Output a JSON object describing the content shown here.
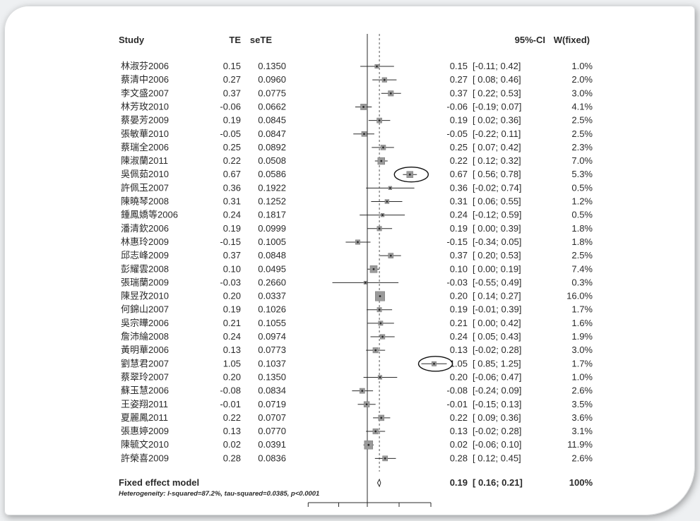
{
  "chart_data": {
    "type": "forest",
    "headers": {
      "study": "Study",
      "te": "TE",
      "sete": "seTE",
      "ci": "95%-CI",
      "weight": "W(fixed)"
    },
    "studies": [
      {
        "study": "林淑芬2006",
        "te": "0.15",
        "sete": "0.1350",
        "est": 0.15,
        "lo": -0.11,
        "hi": 0.42,
        "ci": "[-0.11; 0.42]",
        "weight": "1.0%",
        "w": 1.0
      },
      {
        "study": "蔡清中2006",
        "te": "0.27",
        "sete": "0.0960",
        "est": 0.27,
        "lo": 0.08,
        "hi": 0.46,
        "ci": "[ 0.08; 0.46]",
        "weight": "2.0%",
        "w": 2.0
      },
      {
        "study": "李文盛2007",
        "te": "0.37",
        "sete": "0.0775",
        "est": 0.37,
        "lo": 0.22,
        "hi": 0.53,
        "ci": "[ 0.22; 0.53]",
        "weight": "3.0%",
        "w": 3.0
      },
      {
        "study": "林芳玫2010",
        "te": "-0.06",
        "sete": "0.0662",
        "est": -0.06,
        "lo": -0.19,
        "hi": 0.07,
        "ci": "[-0.19; 0.07]",
        "weight": "4.1%",
        "w": 4.1
      },
      {
        "study": "蔡晏芳2009",
        "te": "0.19",
        "sete": "0.0845",
        "est": 0.19,
        "lo": 0.02,
        "hi": 0.36,
        "ci": "[ 0.02; 0.36]",
        "weight": "2.5%",
        "w": 2.5
      },
      {
        "study": "張敏華2010",
        "te": "-0.05",
        "sete": "0.0847",
        "est": -0.05,
        "lo": -0.22,
        "hi": 0.11,
        "ci": "[-0.22; 0.11]",
        "weight": "2.5%",
        "w": 2.5
      },
      {
        "study": "蔡瑞全2006",
        "te": "0.25",
        "sete": "0.0892",
        "est": 0.25,
        "lo": 0.07,
        "hi": 0.42,
        "ci": "[ 0.07; 0.42]",
        "weight": "2.3%",
        "w": 2.3
      },
      {
        "study": "陳淑蘭2011",
        "te": "0.22",
        "sete": "0.0508",
        "est": 0.22,
        "lo": 0.12,
        "hi": 0.32,
        "ci": "[ 0.12; 0.32]",
        "weight": "7.0%",
        "w": 7.0
      },
      {
        "study": "吳佩茹2010",
        "te": "0.67",
        "sete": "0.0586",
        "est": 0.67,
        "lo": 0.56,
        "hi": 0.78,
        "ci": "[ 0.56; 0.78]",
        "weight": "5.3%",
        "w": 5.3,
        "circled": true
      },
      {
        "study": "許佩玉2007",
        "te": "0.36",
        "sete": "0.1922",
        "est": 0.36,
        "lo": -0.02,
        "hi": 0.74,
        "ci": "[-0.02; 0.74]",
        "weight": "0.5%",
        "w": 0.5
      },
      {
        "study": "陳曉琴2008",
        "te": "0.31",
        "sete": "0.1252",
        "est": 0.31,
        "lo": 0.06,
        "hi": 0.55,
        "ci": "[ 0.06; 0.55]",
        "weight": "1.2%",
        "w": 1.2
      },
      {
        "study": "鍾鳳嬌等2006",
        "te": "0.24",
        "sete": "0.1817",
        "est": 0.24,
        "lo": -0.12,
        "hi": 0.59,
        "ci": "[-0.12; 0.59]",
        "weight": "0.5%",
        "w": 0.5
      },
      {
        "study": "潘清欽2006",
        "te": "0.19",
        "sete": "0.0999",
        "est": 0.19,
        "lo": 0.0,
        "hi": 0.39,
        "ci": "[ 0.00; 0.39]",
        "weight": "1.8%",
        "w": 1.8
      },
      {
        "study": "林惠玲2009",
        "te": "-0.15",
        "sete": "0.1005",
        "est": -0.15,
        "lo": -0.34,
        "hi": 0.05,
        "ci": "[-0.34; 0.05]",
        "weight": "1.8%",
        "w": 1.8
      },
      {
        "study": "邱志峰2009",
        "te": "0.37",
        "sete": "0.0848",
        "est": 0.37,
        "lo": 0.2,
        "hi": 0.53,
        "ci": "[ 0.20; 0.53]",
        "weight": "2.5%",
        "w": 2.5
      },
      {
        "study": "彭耀雲2008",
        "te": "0.10",
        "sete": "0.0495",
        "est": 0.1,
        "lo": 0.0,
        "hi": 0.19,
        "ci": "[ 0.00; 0.19]",
        "weight": "7.4%",
        "w": 7.4
      },
      {
        "study": "張瑞蘭2009",
        "te": "-0.03",
        "sete": "0.2660",
        "est": -0.03,
        "lo": -0.55,
        "hi": 0.49,
        "ci": "[-0.55; 0.49]",
        "weight": "0.3%",
        "w": 0.3
      },
      {
        "study": "陳昱孜2010",
        "te": "0.20",
        "sete": "0.0337",
        "est": 0.2,
        "lo": 0.14,
        "hi": 0.27,
        "ci": "[ 0.14; 0.27]",
        "weight": "16.0%",
        "w": 16.0
      },
      {
        "study": "何錦山2007",
        "te": "0.19",
        "sete": "0.1026",
        "est": 0.19,
        "lo": -0.01,
        "hi": 0.39,
        "ci": "[-0.01; 0.39]",
        "weight": "1.7%",
        "w": 1.7
      },
      {
        "study": "吳宗曄2006",
        "te": "0.21",
        "sete": "0.1055",
        "est": 0.21,
        "lo": 0.0,
        "hi": 0.42,
        "ci": "[ 0.00; 0.42]",
        "weight": "1.6%",
        "w": 1.6
      },
      {
        "study": "詹沛綸2008",
        "te": "0.24",
        "sete": "0.0974",
        "est": 0.24,
        "lo": 0.05,
        "hi": 0.43,
        "ci": "[ 0.05; 0.43]",
        "weight": "1.9%",
        "w": 1.9
      },
      {
        "study": "黃明華2006",
        "te": "0.13",
        "sete": "0.0773",
        "est": 0.13,
        "lo": -0.02,
        "hi": 0.28,
        "ci": "[-0.02; 0.28]",
        "weight": "3.0%",
        "w": 3.0
      },
      {
        "study": "劉慧君2007",
        "te": "1.05",
        "sete": "0.1037",
        "est": 1.05,
        "lo": 0.85,
        "hi": 1.25,
        "ci": "[ 0.85; 1.25]",
        "weight": "1.7%",
        "w": 1.7,
        "circled": true
      },
      {
        "study": "蔡翠玲2007",
        "te": "0.20",
        "sete": "0.1350",
        "est": 0.2,
        "lo": -0.06,
        "hi": 0.47,
        "ci": "[-0.06; 0.47]",
        "weight": "1.0%",
        "w": 1.0
      },
      {
        "study": "蘇玉慧2006",
        "te": "-0.08",
        "sete": "0.0834",
        "est": -0.08,
        "lo": -0.24,
        "hi": 0.09,
        "ci": "[-0.24; 0.09]",
        "weight": "2.6%",
        "w": 2.6
      },
      {
        "study": "王姿翔2011",
        "te": "-0.01",
        "sete": "0.0719",
        "est": -0.01,
        "lo": -0.15,
        "hi": 0.13,
        "ci": "[-0.15; 0.13]",
        "weight": "3.5%",
        "w": 3.5
      },
      {
        "study": "夏麗鳳2011",
        "te": "0.22",
        "sete": "0.0707",
        "est": 0.22,
        "lo": 0.09,
        "hi": 0.36,
        "ci": "[ 0.09; 0.36]",
        "weight": "3.6%",
        "w": 3.6
      },
      {
        "study": "張惠婷2009",
        "te": "0.13",
        "sete": "0.0770",
        "est": 0.13,
        "lo": -0.02,
        "hi": 0.28,
        "ci": "[-0.02; 0.28]",
        "weight": "3.1%",
        "w": 3.1
      },
      {
        "study": "陳毓文2010",
        "te": "0.02",
        "sete": "0.0391",
        "est": 0.02,
        "lo": -0.06,
        "hi": 0.1,
        "ci": "[-0.06; 0.10]",
        "weight": "11.9%",
        "w": 11.9
      },
      {
        "study": "許榮喜2009",
        "te": "0.28",
        "sete": "0.0836",
        "est": 0.28,
        "lo": 0.12,
        "hi": 0.45,
        "ci": "[ 0.12; 0.45]",
        "weight": "2.6%",
        "w": 2.6
      }
    ],
    "pooled": {
      "label": "Fixed effect model",
      "est": 0.19,
      "lo": 0.16,
      "hi": 0.21,
      "te": "0.19",
      "ci": "[ 0.16; 0.21]",
      "weight": "100%"
    },
    "heterogeneity": "Heterogeneity: I-squared=87.2%, tau-squared=0.0385, p<0.0001",
    "null_value": 0,
    "xlim": [
      -0.6,
      1.3
    ],
    "colors": {
      "ink": "#2a2a2a",
      "box": "#9a9a9a",
      "circle": "#111111",
      "dashed": "#555555"
    }
  }
}
